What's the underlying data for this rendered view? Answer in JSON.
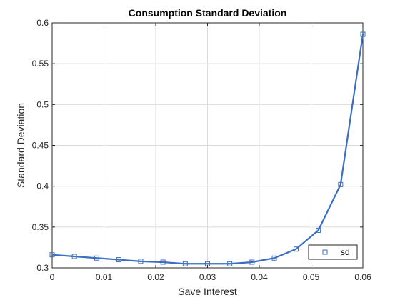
{
  "chart_data": {
    "type": "line",
    "title": "Consumption Standard Deviation",
    "xlabel": "Save Interest",
    "ylabel": "Standard Deviation",
    "xlim": [
      0,
      0.06
    ],
    "ylim": [
      0.3,
      0.6
    ],
    "x_ticks": [
      "0",
      "0.01",
      "0.02",
      "0.03",
      "0.04",
      "0.05",
      "0.06"
    ],
    "y_ticks": [
      "0.3",
      "0.35",
      "0.4",
      "0.45",
      "0.5",
      "0.55",
      "0.6"
    ],
    "grid": true,
    "legend_position": "bottom-right",
    "series": [
      {
        "name": "sd",
        "color": "#3A6EBF",
        "marker": "square",
        "x": [
          0,
          0.0043,
          0.0086,
          0.0129,
          0.0171,
          0.0214,
          0.0257,
          0.03,
          0.0343,
          0.0386,
          0.0429,
          0.0471,
          0.0514,
          0.0557,
          0.06
        ],
        "y": [
          0.316,
          0.314,
          0.312,
          0.31,
          0.308,
          0.307,
          0.305,
          0.305,
          0.305,
          0.307,
          0.312,
          0.323,
          0.346,
          0.402,
          0.586
        ]
      }
    ]
  }
}
